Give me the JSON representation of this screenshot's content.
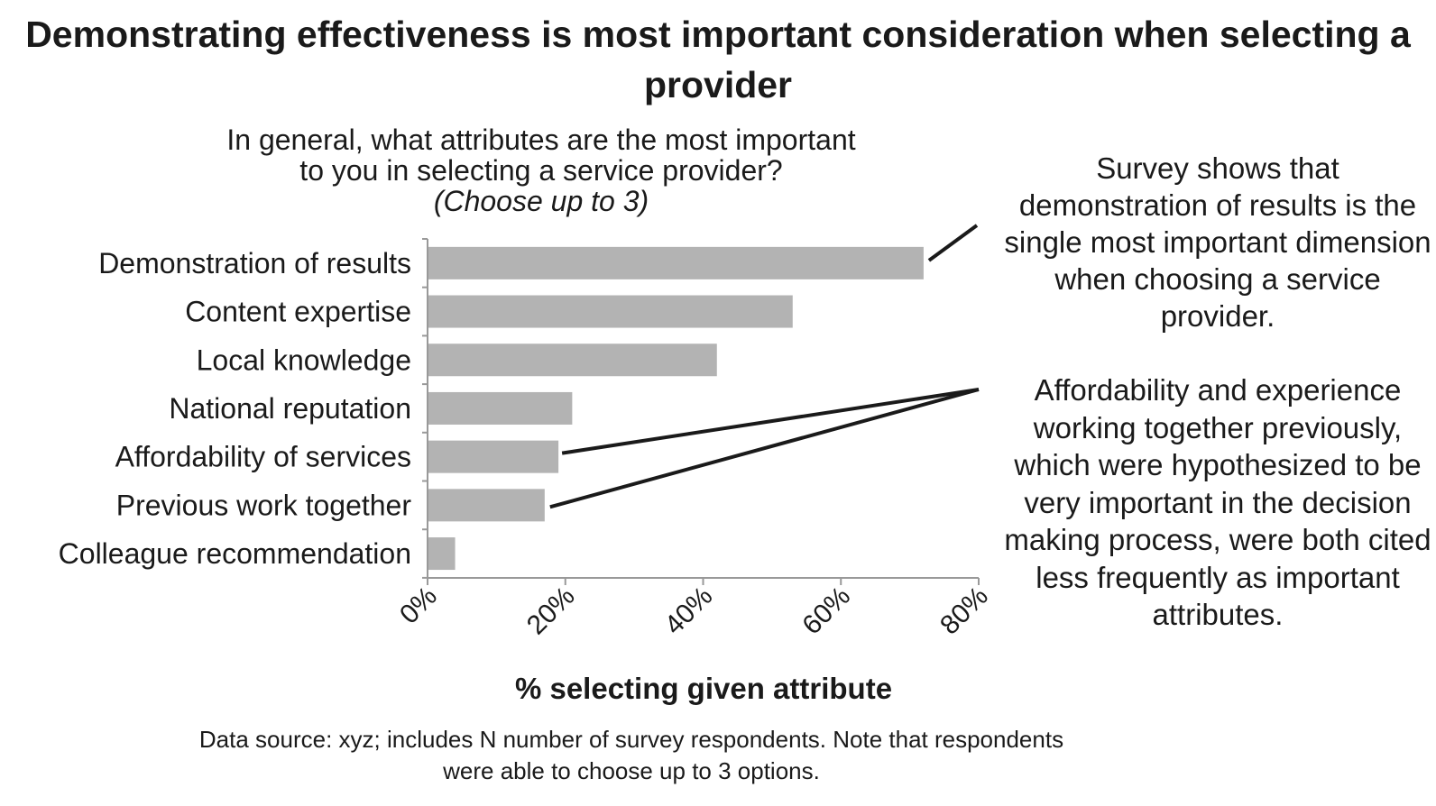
{
  "title": "Demonstrating effectiveness is most important consideration when selecting a provider",
  "question": {
    "line1": "In general, what attributes are the most important",
    "line2": "to you in selecting a service provider?",
    "note": "(Choose up to 3)"
  },
  "callouts": {
    "results": "Survey shows that demonstration of results is the single most important dimension when choosing a service provider.",
    "affordability": "Affordability and experience working together previously, which were hypothesized to be very important in the decision making process, were both cited less frequently as important attributes."
  },
  "source_note": "Data source: xyz; includes N number of survey respondents. Note that respondents were able to choose up to 3 options.",
  "colors": {
    "bar": "#b3b3b3",
    "axis": "#999999",
    "callout_line": "#1a1a1a"
  },
  "chart_data": {
    "type": "bar",
    "orientation": "horizontal",
    "categories": [
      "Demonstration of results",
      "Content expertise",
      "Local knowledge",
      "National reputation",
      "Affordability of services",
      "Previous work together",
      "Colleague recommendation"
    ],
    "values": [
      72,
      53,
      42,
      21,
      19,
      17,
      4
    ],
    "unit": "%",
    "xlim": [
      0,
      80
    ],
    "ticks": [
      0,
      20,
      40,
      60,
      80
    ],
    "tick_labels": [
      "0%",
      "20%",
      "40%",
      "60%",
      "80%"
    ],
    "xlabel": "% selecting given attribute",
    "grid": false
  }
}
